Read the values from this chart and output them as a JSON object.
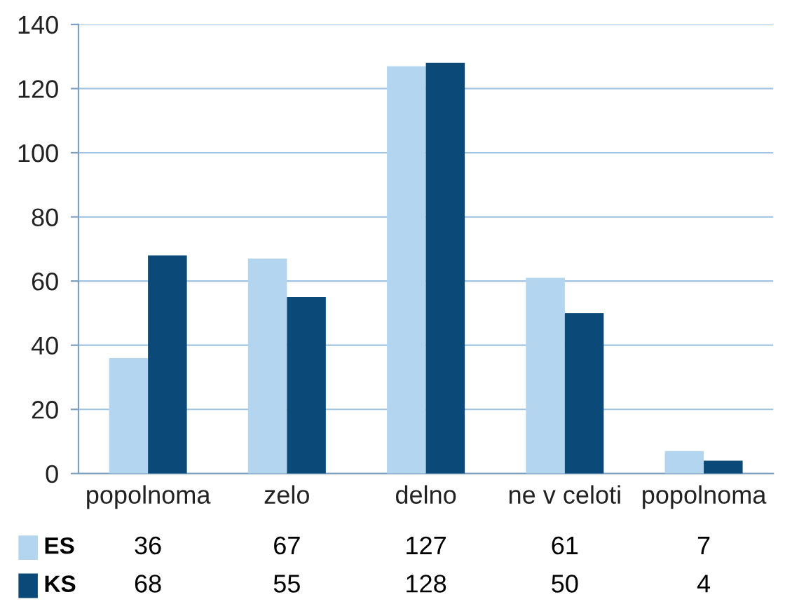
{
  "chart_data": {
    "type": "bar",
    "categories": [
      "popolnoma",
      "zelo",
      "delno",
      "ne v celoti",
      "popolnoma"
    ],
    "series": [
      {
        "name": "ES",
        "color": "#b3d5ef",
        "values": [
          36,
          67,
          127,
          61,
          7
        ]
      },
      {
        "name": "KS",
        "color": "#0b4a78",
        "values": [
          68,
          55,
          128,
          50,
          4
        ]
      }
    ],
    "ylim": [
      0,
      140
    ],
    "yticks": [
      0,
      20,
      40,
      60,
      80,
      100,
      120,
      140
    ],
    "grid": "y",
    "legend": "bottom",
    "data_labels": true
  }
}
